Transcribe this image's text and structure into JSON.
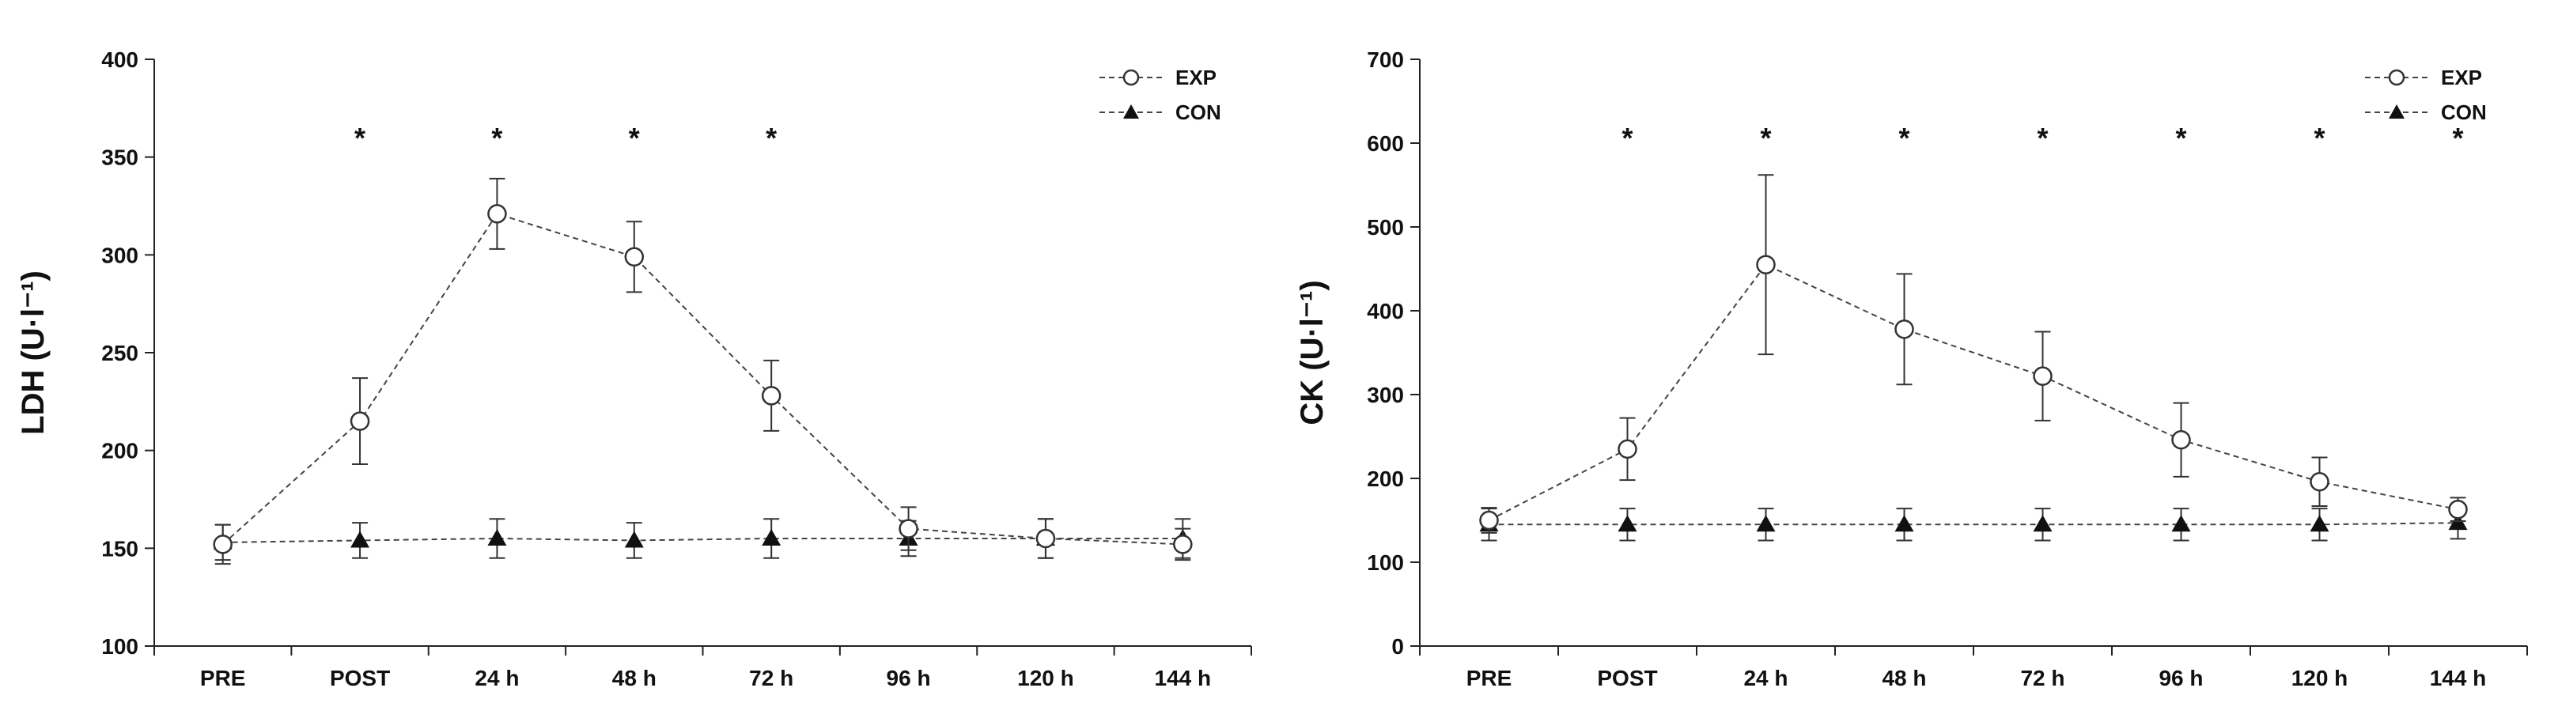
{
  "chart_data": [
    {
      "type": "line",
      "ylabel": "LDH (U·l⁻¹)",
      "ylim": [
        100,
        400
      ],
      "yticks": [
        100,
        150,
        200,
        250,
        300,
        350,
        400
      ],
      "categories": [
        "PRE",
        "POST",
        "24 h",
        "48 h",
        "72 h",
        "96 h",
        "120 h",
        "144 h"
      ],
      "legend_position": "top-right",
      "grid": false,
      "series": [
        {
          "name": "EXP",
          "marker": "open-circle",
          "values": [
            152,
            215,
            321,
            299,
            228,
            160,
            155,
            152
          ],
          "error": [
            10,
            22,
            18,
            18,
            18,
            11,
            10,
            8
          ]
        },
        {
          "name": "CON",
          "marker": "filled-triangle",
          "values": [
            153,
            154,
            155,
            154,
            155,
            155,
            155,
            155
          ],
          "error": [
            9,
            9,
            10,
            9,
            10,
            9,
            10,
            10
          ]
        }
      ],
      "significance": [
        "",
        "*",
        "*",
        "*",
        "*",
        "",
        "",
        ""
      ]
    },
    {
      "type": "line",
      "ylabel": "CK (U·l⁻¹)",
      "ylim": [
        0,
        700
      ],
      "yticks": [
        0,
        100,
        200,
        300,
        400,
        500,
        600,
        700
      ],
      "categories": [
        "PRE",
        "POST",
        "24 h",
        "48 h",
        "72 h",
        "96 h",
        "120 h",
        "144 h"
      ],
      "legend_position": "top-right",
      "grid": false,
      "series": [
        {
          "name": "EXP",
          "marker": "open-circle",
          "values": [
            150,
            235,
            455,
            378,
            322,
            246,
            196,
            163
          ],
          "error": [
            15,
            37,
            107,
            66,
            53,
            44,
            29,
            14
          ]
        },
        {
          "name": "CON",
          "marker": "filled-triangle",
          "values": [
            145,
            145,
            145,
            145,
            145,
            145,
            145,
            147
          ],
          "error": [
            19,
            19,
            19,
            19,
            19,
            19,
            19,
            19
          ]
        }
      ],
      "significance": [
        "",
        "*",
        "*",
        "*",
        "*",
        "*",
        "*",
        "*"
      ]
    }
  ]
}
